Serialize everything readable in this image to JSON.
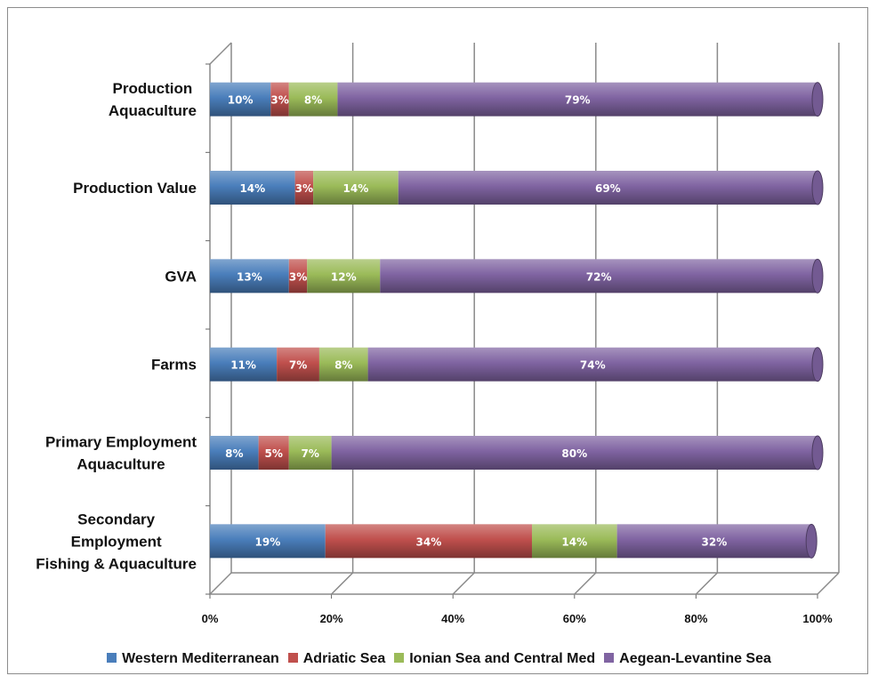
{
  "chart_data": {
    "type": "bar",
    "orientation": "horizontal",
    "stacked": "percent",
    "categories": [
      [
        "Production",
        "Aquaculture"
      ],
      [
        "Production Value"
      ],
      [
        "GVA"
      ],
      [
        "Farms"
      ],
      [
        "Primary Employment",
        "Aquaculture"
      ],
      [
        "Secondary",
        "Employment",
        "Fishing & Aquaculture"
      ]
    ],
    "series": [
      {
        "name": "Western Mediterranean",
        "color": "#4a7ebb",
        "values": [
          10,
          14,
          13,
          11,
          8,
          19
        ],
        "labels": [
          "10%",
          "14%",
          "13%",
          "11%",
          "8%",
          "19%"
        ]
      },
      {
        "name": "Adriatic Sea",
        "color": "#c0504d",
        "values": [
          3,
          3,
          3,
          7,
          5,
          34
        ],
        "labels": [
          "3%",
          "3%",
          "3%",
          "7%",
          "5%",
          "34%"
        ]
      },
      {
        "name": "Ionian Sea and Central Med",
        "color": "#9bbb59",
        "values": [
          8,
          14,
          12,
          8,
          7,
          14
        ],
        "labels": [
          "8%",
          "14%",
          "12%",
          "8%",
          "7%",
          "14%"
        ]
      },
      {
        "name": "Aegean-Levantine Sea",
        "color": "#8064a2",
        "values": [
          79,
          69,
          72,
          74,
          80,
          32
        ],
        "labels": [
          "79%",
          "69%",
          "72%",
          "74%",
          "80%",
          "32%"
        ]
      }
    ],
    "xaxis": {
      "ticks": [
        0,
        20,
        40,
        60,
        80,
        100
      ],
      "tick_labels": [
        "0%",
        "20%",
        "40%",
        "60%",
        "80%",
        "100%"
      ],
      "range": [
        0,
        100
      ]
    },
    "grid": true,
    "legend": "bottom"
  }
}
